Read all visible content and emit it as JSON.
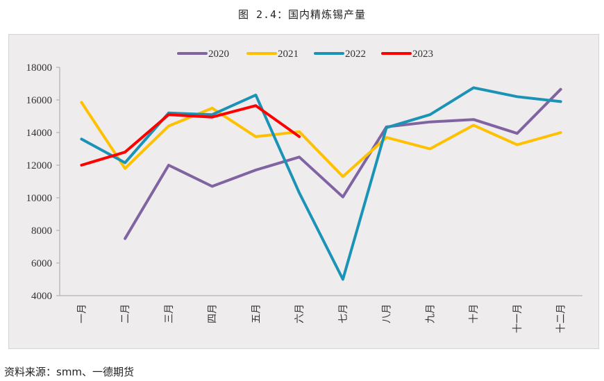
{
  "title": "图 2.4：国内精炼锡产量",
  "source": "资料来源：smm、一德期货",
  "chart_data": {
    "type": "line",
    "title": "国内精炼锡产量",
    "xlabel": "",
    "ylabel": "",
    "ylim": [
      4000,
      18000
    ],
    "yticks": [
      4000,
      6000,
      8000,
      10000,
      12000,
      14000,
      16000,
      18000
    ],
    "grid": false,
    "legend_position": "top",
    "categories": [
      "一月",
      "二月",
      "三月",
      "四月",
      "五月",
      "六月",
      "七月",
      "八月",
      "九月",
      "十月",
      "十一月",
      "十二月"
    ],
    "series": [
      {
        "name": "2020",
        "color": "#8064a2",
        "values": [
          null,
          7500,
          12000,
          10700,
          11700,
          12500,
          10050,
          14350,
          14650,
          14800,
          13950,
          16650
        ]
      },
      {
        "name": "2021",
        "color": "#ffc000",
        "values": [
          15850,
          11800,
          14400,
          15500,
          13750,
          14050,
          11300,
          13700,
          13000,
          14450,
          13250,
          14000
        ]
      },
      {
        "name": "2022",
        "color": "#1b93b6",
        "values": [
          13600,
          12150,
          15200,
          15100,
          16300,
          10300,
          5000,
          14300,
          15100,
          16750,
          16200,
          15900
        ]
      },
      {
        "name": "2023",
        "color": "#ff0000",
        "values": [
          12000,
          12800,
          15100,
          14950,
          15650,
          13750,
          null,
          null,
          null,
          null,
          null,
          null
        ]
      }
    ]
  }
}
